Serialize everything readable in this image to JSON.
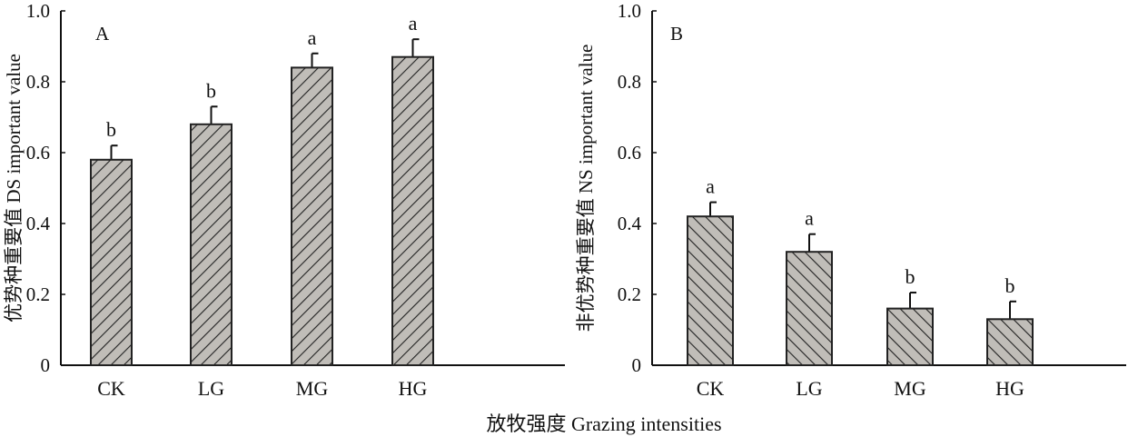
{
  "chart_data": [
    {
      "type": "bar",
      "panel_label": "A",
      "categories": [
        "CK",
        "LG",
        "MG",
        "HG"
      ],
      "values": [
        0.58,
        0.68,
        0.84,
        0.87
      ],
      "errors": [
        0.04,
        0.05,
        0.04,
        0.05
      ],
      "significance": [
        "b",
        "b",
        "a",
        "a"
      ],
      "ylabel": "优势种重要值 DS important value",
      "ylim": [
        0,
        1.0
      ],
      "yticks": [
        "0",
        "0.2",
        "0.4",
        "0.6",
        "0.8",
        "1.0"
      ],
      "hatch": "forward",
      "fill": "#c0bdb8"
    },
    {
      "type": "bar",
      "panel_label": "B",
      "categories": [
        "CK",
        "LG",
        "MG",
        "HG"
      ],
      "values": [
        0.42,
        0.32,
        0.16,
        0.13
      ],
      "errors": [
        0.04,
        0.05,
        0.045,
        0.05
      ],
      "significance": [
        "a",
        "a",
        "b",
        "b"
      ],
      "ylabel": "非优势种重要值 NS important value",
      "ylim": [
        0,
        1.0
      ],
      "yticks": [
        "0",
        "0.2",
        "0.4",
        "0.6",
        "0.8",
        "1.0"
      ],
      "hatch": "backward",
      "fill": "#c0bdb8"
    }
  ],
  "xlabel": "放牧强度 Grazing intensities"
}
